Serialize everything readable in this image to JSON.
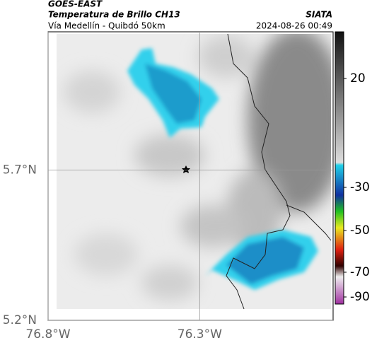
{
  "header": {
    "title": "GOES-EAST",
    "subtitle": "Temperatura de Brillo CH13",
    "source": "SIATA",
    "route": "Vía Medellín - Quibdó 50km",
    "timestamp": "2024-08-26 00:49"
  },
  "map": {
    "xlim": [
      -76.8,
      -75.86
    ],
    "ylim": [
      5.2,
      6.16
    ],
    "xticks": [
      {
        "value": -76.8,
        "label": "76.8°W"
      },
      {
        "value": -76.3,
        "label": "76.3°W"
      }
    ],
    "yticks": [
      {
        "value": 5.2,
        "label": "5.2°N"
      },
      {
        "value": 5.7,
        "label": "5.7°N"
      }
    ]
  },
  "colorbar": {
    "ticks": [
      20,
      -30,
      -50,
      -70,
      -90
    ]
  }
}
